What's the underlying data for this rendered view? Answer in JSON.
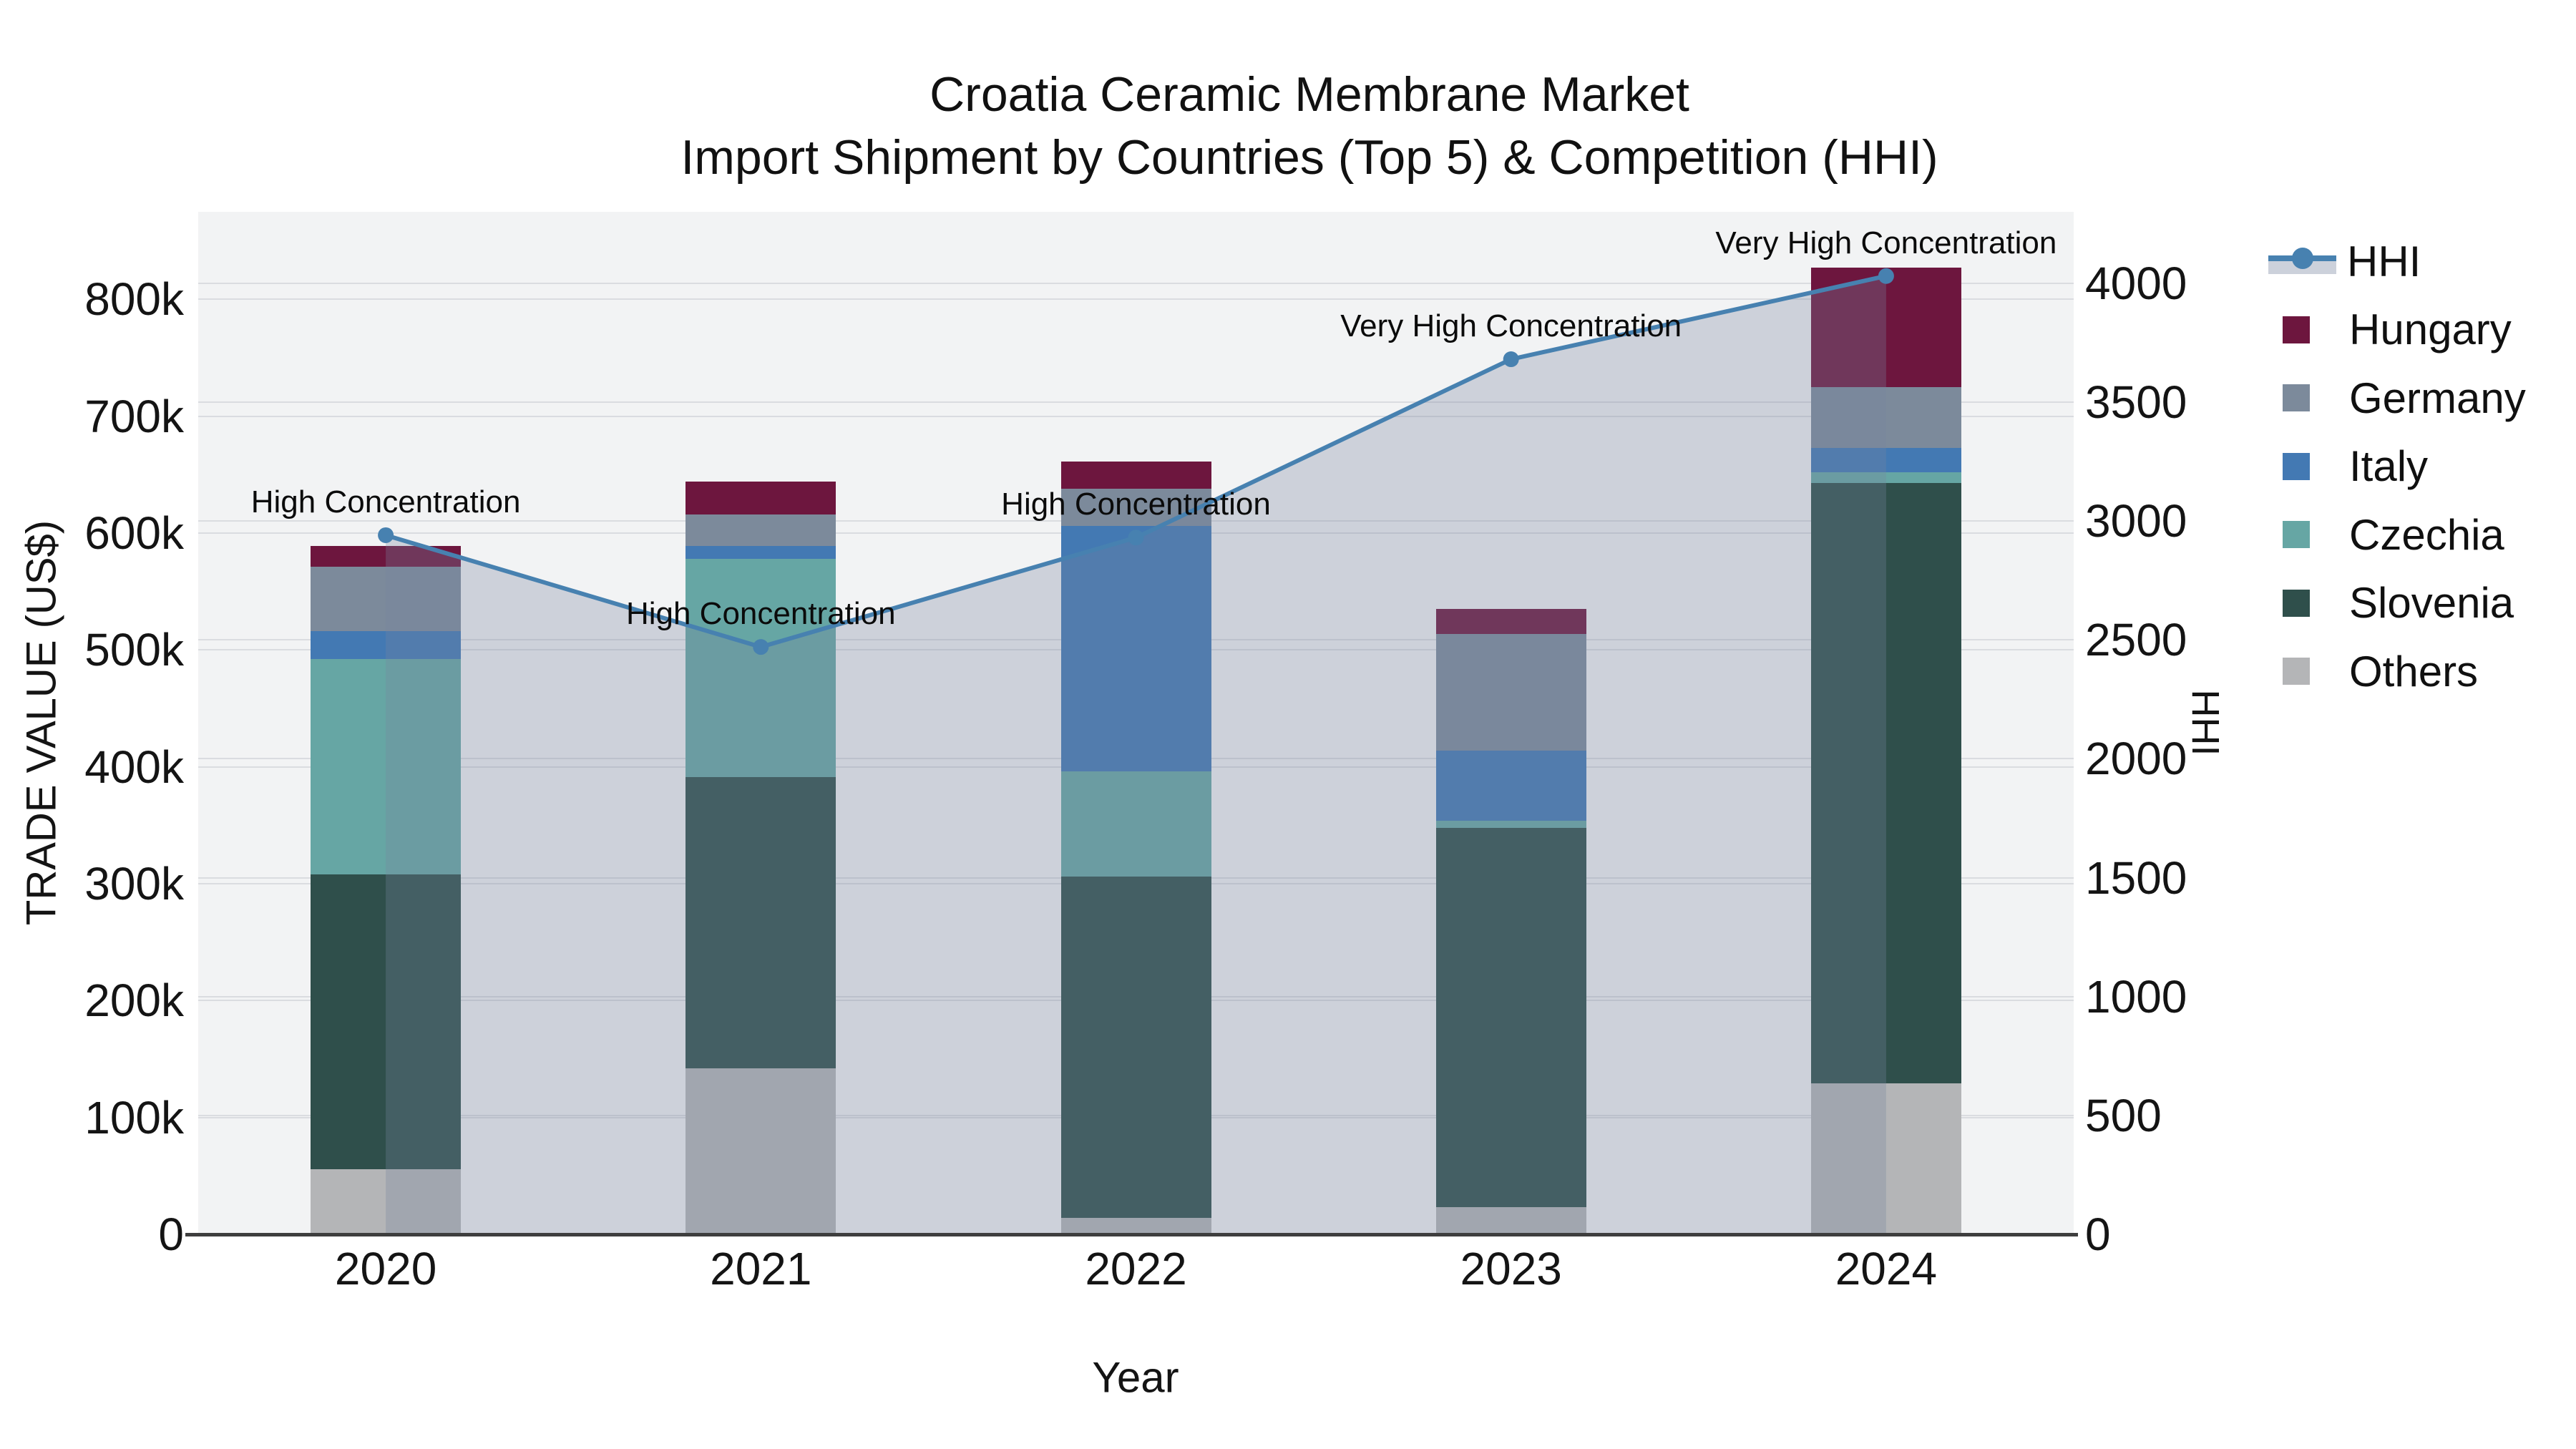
{
  "title": {
    "line1": "Croatia Ceramic Membrane Market",
    "line2": "Import Shipment by Countries (Top 5) & Competition (HHI)"
  },
  "axes": {
    "x": {
      "title": "Year"
    },
    "y_left": {
      "title": "TRADE VALUE (US$)",
      "ticks": [
        {
          "label": "0",
          "value": 0
        },
        {
          "label": "100k",
          "value": 100000
        },
        {
          "label": "200k",
          "value": 200000
        },
        {
          "label": "300k",
          "value": 300000
        },
        {
          "label": "400k",
          "value": 400000
        },
        {
          "label": "500k",
          "value": 500000
        },
        {
          "label": "600k",
          "value": 600000
        },
        {
          "label": "700k",
          "value": 700000
        },
        {
          "label": "800k",
          "value": 800000
        }
      ]
    },
    "y_right": {
      "title": "HHI",
      "ticks": [
        {
          "label": "0",
          "value": 0
        },
        {
          "label": "500",
          "value": 500
        },
        {
          "label": "1000",
          "value": 1000
        },
        {
          "label": "1500",
          "value": 1500
        },
        {
          "label": "2000",
          "value": 2000
        },
        {
          "label": "2500",
          "value": 2500
        },
        {
          "label": "3000",
          "value": 3000
        },
        {
          "label": "3500",
          "value": 3500
        },
        {
          "label": "4000",
          "value": 4000
        }
      ]
    }
  },
  "colors": {
    "hhi_line": "#4781b0",
    "hhi_area_fill": "rgba(119,133,160,0.30)",
    "plot_background": "#f2f3f4",
    "gridline": "#dadce0",
    "axis_line": "#3e3e3e",
    "hungary": "#6d163e",
    "germany": "#7c8a9b",
    "italy": "#4379b3",
    "czechia": "#66a6a4",
    "slovenia": "#2f4f4b",
    "others": "#b4b5b7"
  },
  "legend_order": [
    "HHI",
    "Hungary",
    "Germany",
    "Italy",
    "Czechia",
    "Slovenia",
    "Others"
  ],
  "chart_data": {
    "type": "combo: stacked bar (left axis) + line with area fill (right axis)",
    "title": "Croatia Ceramic Membrane Market — Import Shipment by Countries (Top 5) & Competition (HHI)",
    "categories": [
      "2020",
      "2021",
      "2022",
      "2023",
      "2024"
    ],
    "xlabel": "Year",
    "ylabel_left": "TRADE VALUE (US$)",
    "ylabel_right": "HHI",
    "y_left_range": [
      0,
      875000
    ],
    "y_right_range": [
      0,
      4300
    ],
    "grid": true,
    "legend_position": "right",
    "bar_series_bottom_to_top": [
      {
        "name": "Others",
        "color": "#b4b5b7",
        "values": [
          56000,
          142000,
          14000,
          23000,
          129000
        ]
      },
      {
        "name": "Slovenia",
        "color": "#2f4f4b",
        "values": [
          252000,
          249000,
          292000,
          325000,
          514000
        ]
      },
      {
        "name": "Czechia",
        "color": "#66a6a4",
        "values": [
          184000,
          187000,
          90000,
          6000,
          9000
        ]
      },
      {
        "name": "Italy",
        "color": "#4379b3",
        "values": [
          24000,
          11000,
          210000,
          60000,
          21000
        ]
      },
      {
        "name": "Germany",
        "color": "#7c8a9b",
        "values": [
          55000,
          27000,
          32000,
          100000,
          52000
        ]
      },
      {
        "name": "Hungary",
        "color": "#6d163e",
        "values": [
          18000,
          28000,
          23000,
          21000,
          102000
        ]
      }
    ],
    "line_series": {
      "name": "HHI",
      "axis": "right",
      "color": "#4781b0",
      "fill_to_zero": true,
      "values": [
        2940,
        2470,
        2930,
        3680,
        4030
      ]
    },
    "annotations": [
      {
        "category": "2020",
        "text": "High Concentration"
      },
      {
        "category": "2021",
        "text": "High Concentration"
      },
      {
        "category": "2022",
        "text": "High Concentration"
      },
      {
        "category": "2023",
        "text": "Very High Concentration"
      },
      {
        "category": "2024",
        "text": "Very High Concentration"
      }
    ]
  }
}
